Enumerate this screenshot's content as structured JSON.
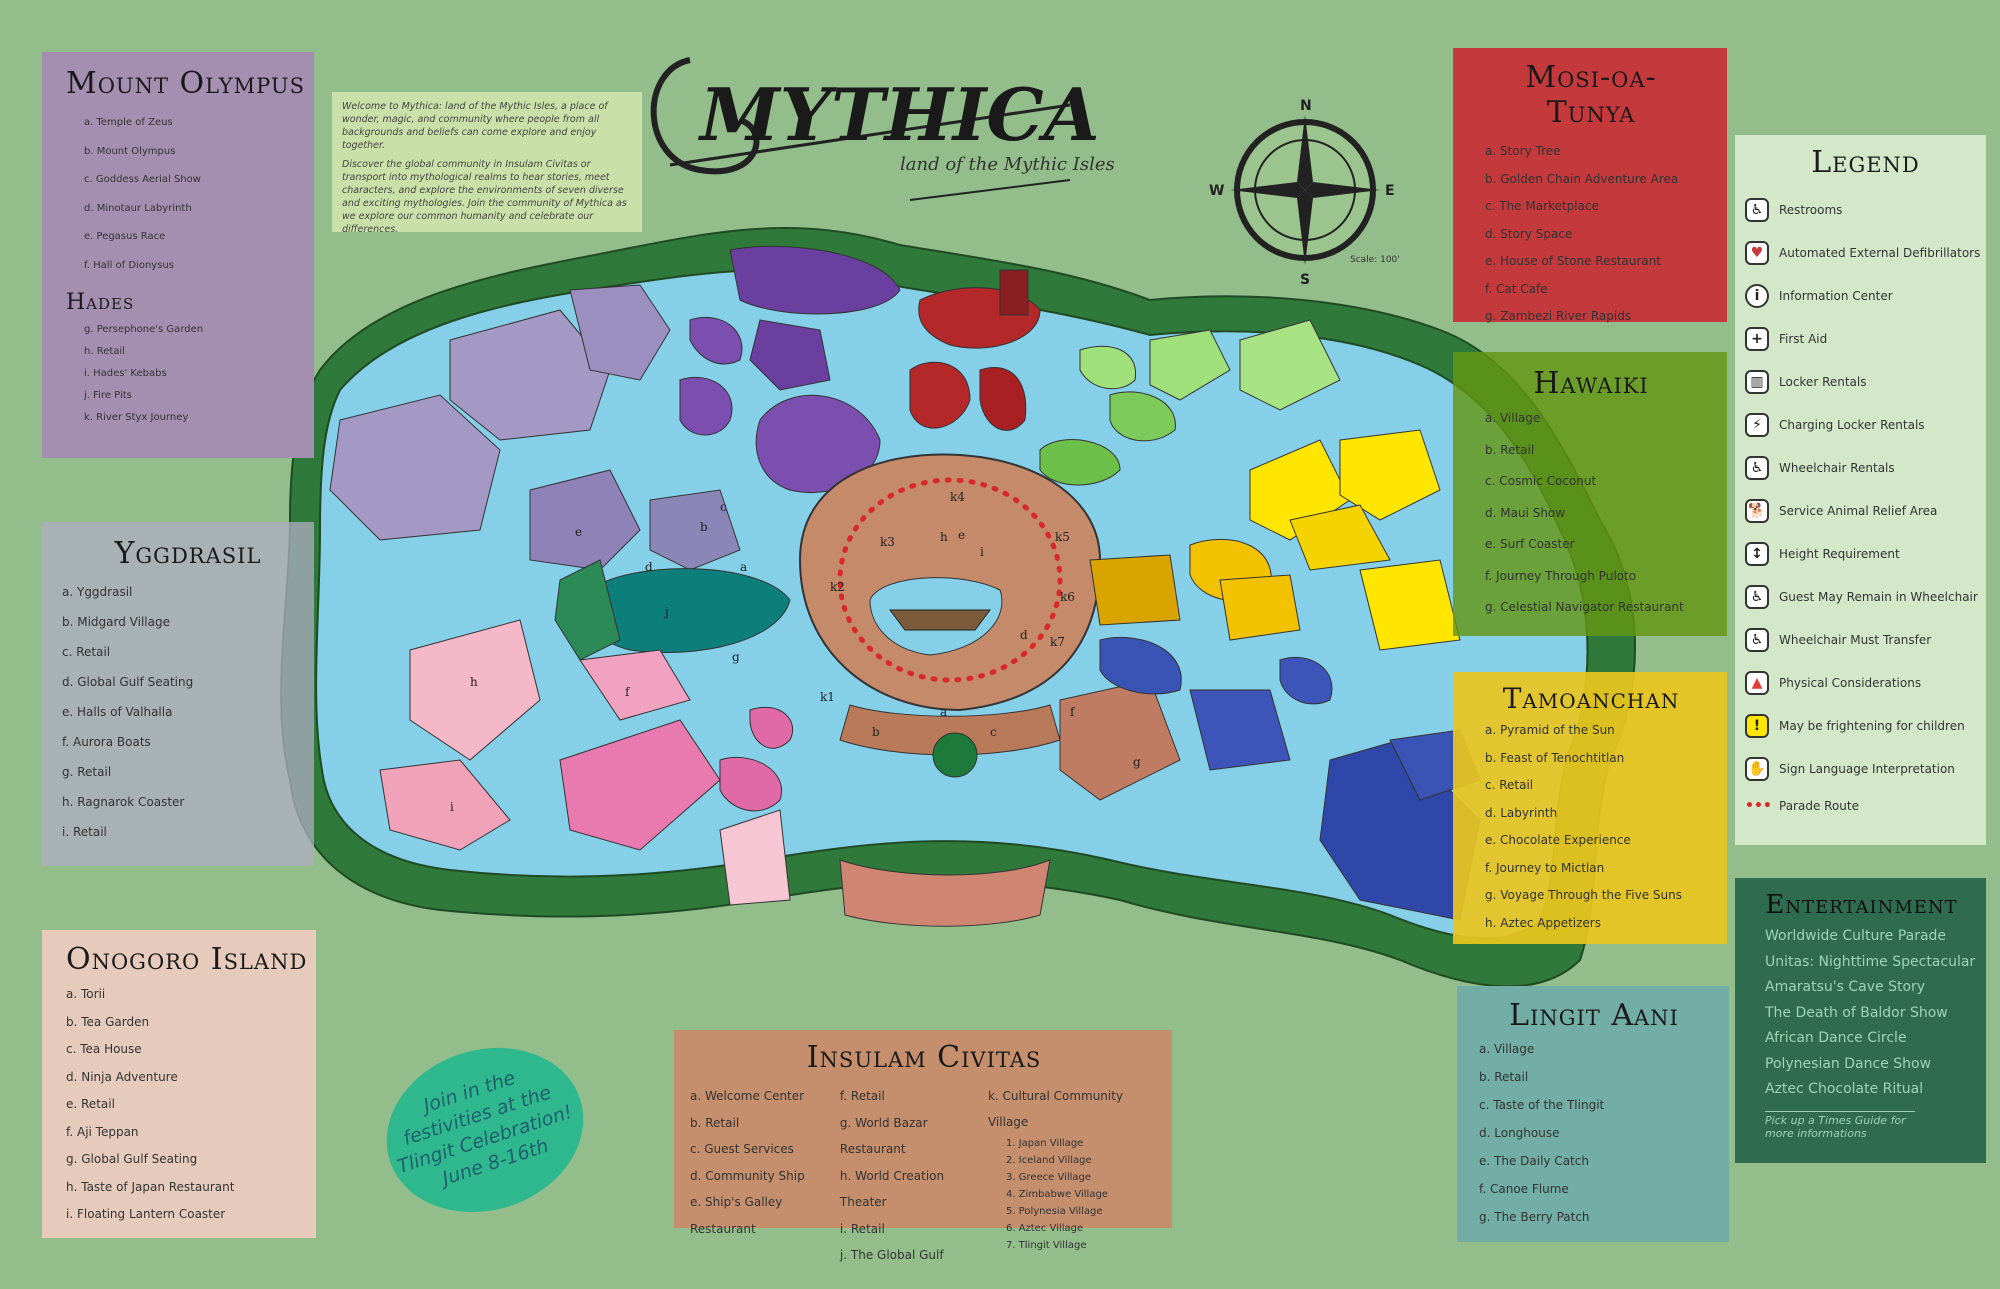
{
  "title": {
    "name": "MYTHICA",
    "subtitle": "land of the Mythic Isles"
  },
  "intro": {
    "p1": "Welcome to Mythica: land of the Mythic Isles, a place of wonder, magic, and community where people from all backgrounds and beliefs can come explore and enjoy together.",
    "p2": "Discover the global community in Insulam Civitas or transport into mythological realms to hear stories, meet characters, and explore the environments of seven diverse and exciting mythologies. Join the community of Mythica as we explore our common humanity and celebrate our differences."
  },
  "compass": {
    "n": "N",
    "s": "S",
    "e": "E",
    "w": "W",
    "scale": "Scale: 100'"
  },
  "celebration": "Join in the festivities at the Tlingit Celebration! June 8-16th",
  "regions": {
    "olympus": {
      "title": "Mount Olympus",
      "color": "#a48fb0",
      "items": [
        "a. Temple of Zeus",
        "b. Mount Olympus",
        "c. Goddess Aerial Show",
        "d. Minotaur Labyrinth",
        "e. Pegasus Race",
        "f. Hall of Dionysus"
      ]
    },
    "hades": {
      "title": "Hades",
      "items": [
        "g. Persephone's Garden",
        "h. Retail",
        "i. Hades' Kebabs",
        "j. Fire Pits",
        "k. River Styx Journey"
      ]
    },
    "yggdrasil": {
      "title": "Yggdrasil",
      "items": [
        "a. Yggdrasil",
        "b. Midgard Village",
        "c. Retail",
        "d. Global Gulf Seating",
        "e. Halls of Valhalla",
        "f. Aurora Boats",
        "g. Retail",
        "h. Ragnarok Coaster",
        "i. Retail"
      ]
    },
    "onogoro": {
      "title": "Onogoro Island",
      "items": [
        "a. Torii",
        "b. Tea Garden",
        "c. Tea House",
        "d. Ninja Adventure",
        "e. Retail",
        "f. Aji Teppan",
        "g. Global Gulf Seating",
        "h. Taste of Japan Restaurant",
        "i. Floating Lantern Coaster"
      ]
    },
    "mosi": {
      "title": "Mosi-oa-Tunya",
      "items": [
        "a. Story Tree",
        "b. Golden Chain Adventure Area",
        "c. The Marketplace",
        "d. Story Space",
        "e. House of Stone Restaurant",
        "f. Cat Cafe",
        "g. Zambezi River Rapids"
      ]
    },
    "hawaiki": {
      "title": "Hawaiki",
      "items": [
        "a. Village",
        "b. Retail",
        "c. Cosmic Coconut",
        "d. Maui Show",
        "e. Surf Coaster",
        "f. Journey Through Puloto",
        "g. Celestial Navigator Restaurant"
      ]
    },
    "tamoanchan": {
      "title": "Tamoanchan",
      "items": [
        "a. Pyramid of the Sun",
        "b. Feast of Tenochtitlan",
        "c. Retail",
        "d. Labyrinth",
        "e. Chocolate Experience",
        "f. Journey to Mictlan",
        "g. Voyage Through the Five Suns",
        "h. Aztec Appetizers"
      ]
    },
    "lingit": {
      "title": "Lingit Aani",
      "items": [
        "a. Village",
        "b. Retail",
        "c. Taste of the Tlingit",
        "d. Longhouse",
        "e. The Daily Catch",
        "f. Canoe Flume",
        "g. The Berry Patch"
      ]
    },
    "civitas": {
      "title": "Insulam Civitas",
      "col1": [
        "a. Welcome Center",
        "b. Retail",
        "c. Guest Services",
        "d. Community Ship",
        "e. Ship's Galley Restaurant"
      ],
      "col2": [
        "f. Retail",
        "g. World Bazar Restaurant",
        "h. World Creation Theater",
        "i. Retail",
        "j. The Global Gulf"
      ],
      "col3": [
        "k. Cultural Community Village"
      ],
      "villages": [
        "1. Japan Village",
        "2. Iceland Village",
        "3. Greece Village",
        "4. Zimbabwe Village",
        "5. Polynesia Village",
        "6. Aztec Village",
        "7. Tlingit Village"
      ]
    }
  },
  "legend": {
    "title": "Legend",
    "items": [
      {
        "label": "Restrooms",
        "icon": "restroom-icon",
        "glyph": "♿"
      },
      {
        "label": "Automated External Defibrillators",
        "icon": "aed-icon",
        "glyph": "♥"
      },
      {
        "label": "Information Center",
        "icon": "info-icon",
        "glyph": "i"
      },
      {
        "label": "First Aid",
        "icon": "first-aid-icon",
        "glyph": "+"
      },
      {
        "label": "Locker Rentals",
        "icon": "locker-icon",
        "glyph": "▥"
      },
      {
        "label": "Charging Locker Rentals",
        "icon": "charging-locker-icon",
        "glyph": "⚡"
      },
      {
        "label": "Wheelchair Rentals",
        "icon": "wheelchair-rental-icon",
        "glyph": "♿"
      },
      {
        "label": "Service Animal Relief Area",
        "icon": "service-animal-icon",
        "glyph": "🐕"
      },
      {
        "label": "Height Requirement",
        "icon": "height-icon",
        "glyph": "↕"
      },
      {
        "label": "Guest May Remain in Wheelchair",
        "icon": "remain-wheelchair-icon",
        "glyph": "♿"
      },
      {
        "label": "Wheelchair Must Transfer",
        "icon": "transfer-wheelchair-icon",
        "glyph": "♿"
      },
      {
        "label": "Physical Considerations",
        "icon": "physical-icon",
        "glyph": "▲"
      },
      {
        "label": "May be frightening for children",
        "icon": "frightening-icon",
        "glyph": "!"
      },
      {
        "label": "Sign Language Interpretation",
        "icon": "sign-language-icon",
        "glyph": "✋"
      },
      {
        "label": "Parade Route",
        "icon": "parade-route-icon",
        "glyph": "•••"
      }
    ]
  },
  "entertainment": {
    "title": "Entertainment",
    "items": [
      "Worldwide Culture Parade",
      "Unitas: Nighttime Spectacular",
      "Amaratsu's Cave Story",
      "The Death of Baldor Show",
      "African Dance Circle",
      "Polynesian Dance Show",
      "Aztec Chocolate Ritual"
    ],
    "note": "Pick up a Times Guide for more informations"
  },
  "map_labels": {
    "civitas": [
      "a",
      "b",
      "c",
      "d",
      "e",
      "f",
      "g",
      "h",
      "i",
      "j",
      "k1",
      "k2",
      "k3",
      "k4",
      "k5",
      "k6",
      "k7"
    ],
    "yggdrasil": [
      "a",
      "b",
      "c",
      "d",
      "e",
      "f",
      "g",
      "h",
      "i"
    ]
  }
}
